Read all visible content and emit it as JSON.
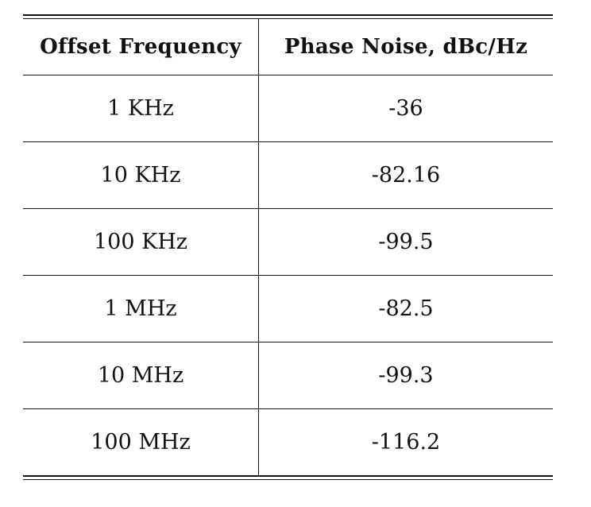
{
  "table": {
    "headers": [
      "Offset Frequency",
      "Phase Noise, dBc/Hz"
    ],
    "rows": [
      [
        "1 KHz",
        "-36"
      ],
      [
        "10 KHz",
        "-82.16"
      ],
      [
        "100 KHz",
        "-99.5"
      ],
      [
        "1 MHz",
        "-82.5"
      ],
      [
        "10 MHz",
        "-99.3"
      ],
      [
        "100 MHz",
        "-116.2"
      ]
    ]
  }
}
